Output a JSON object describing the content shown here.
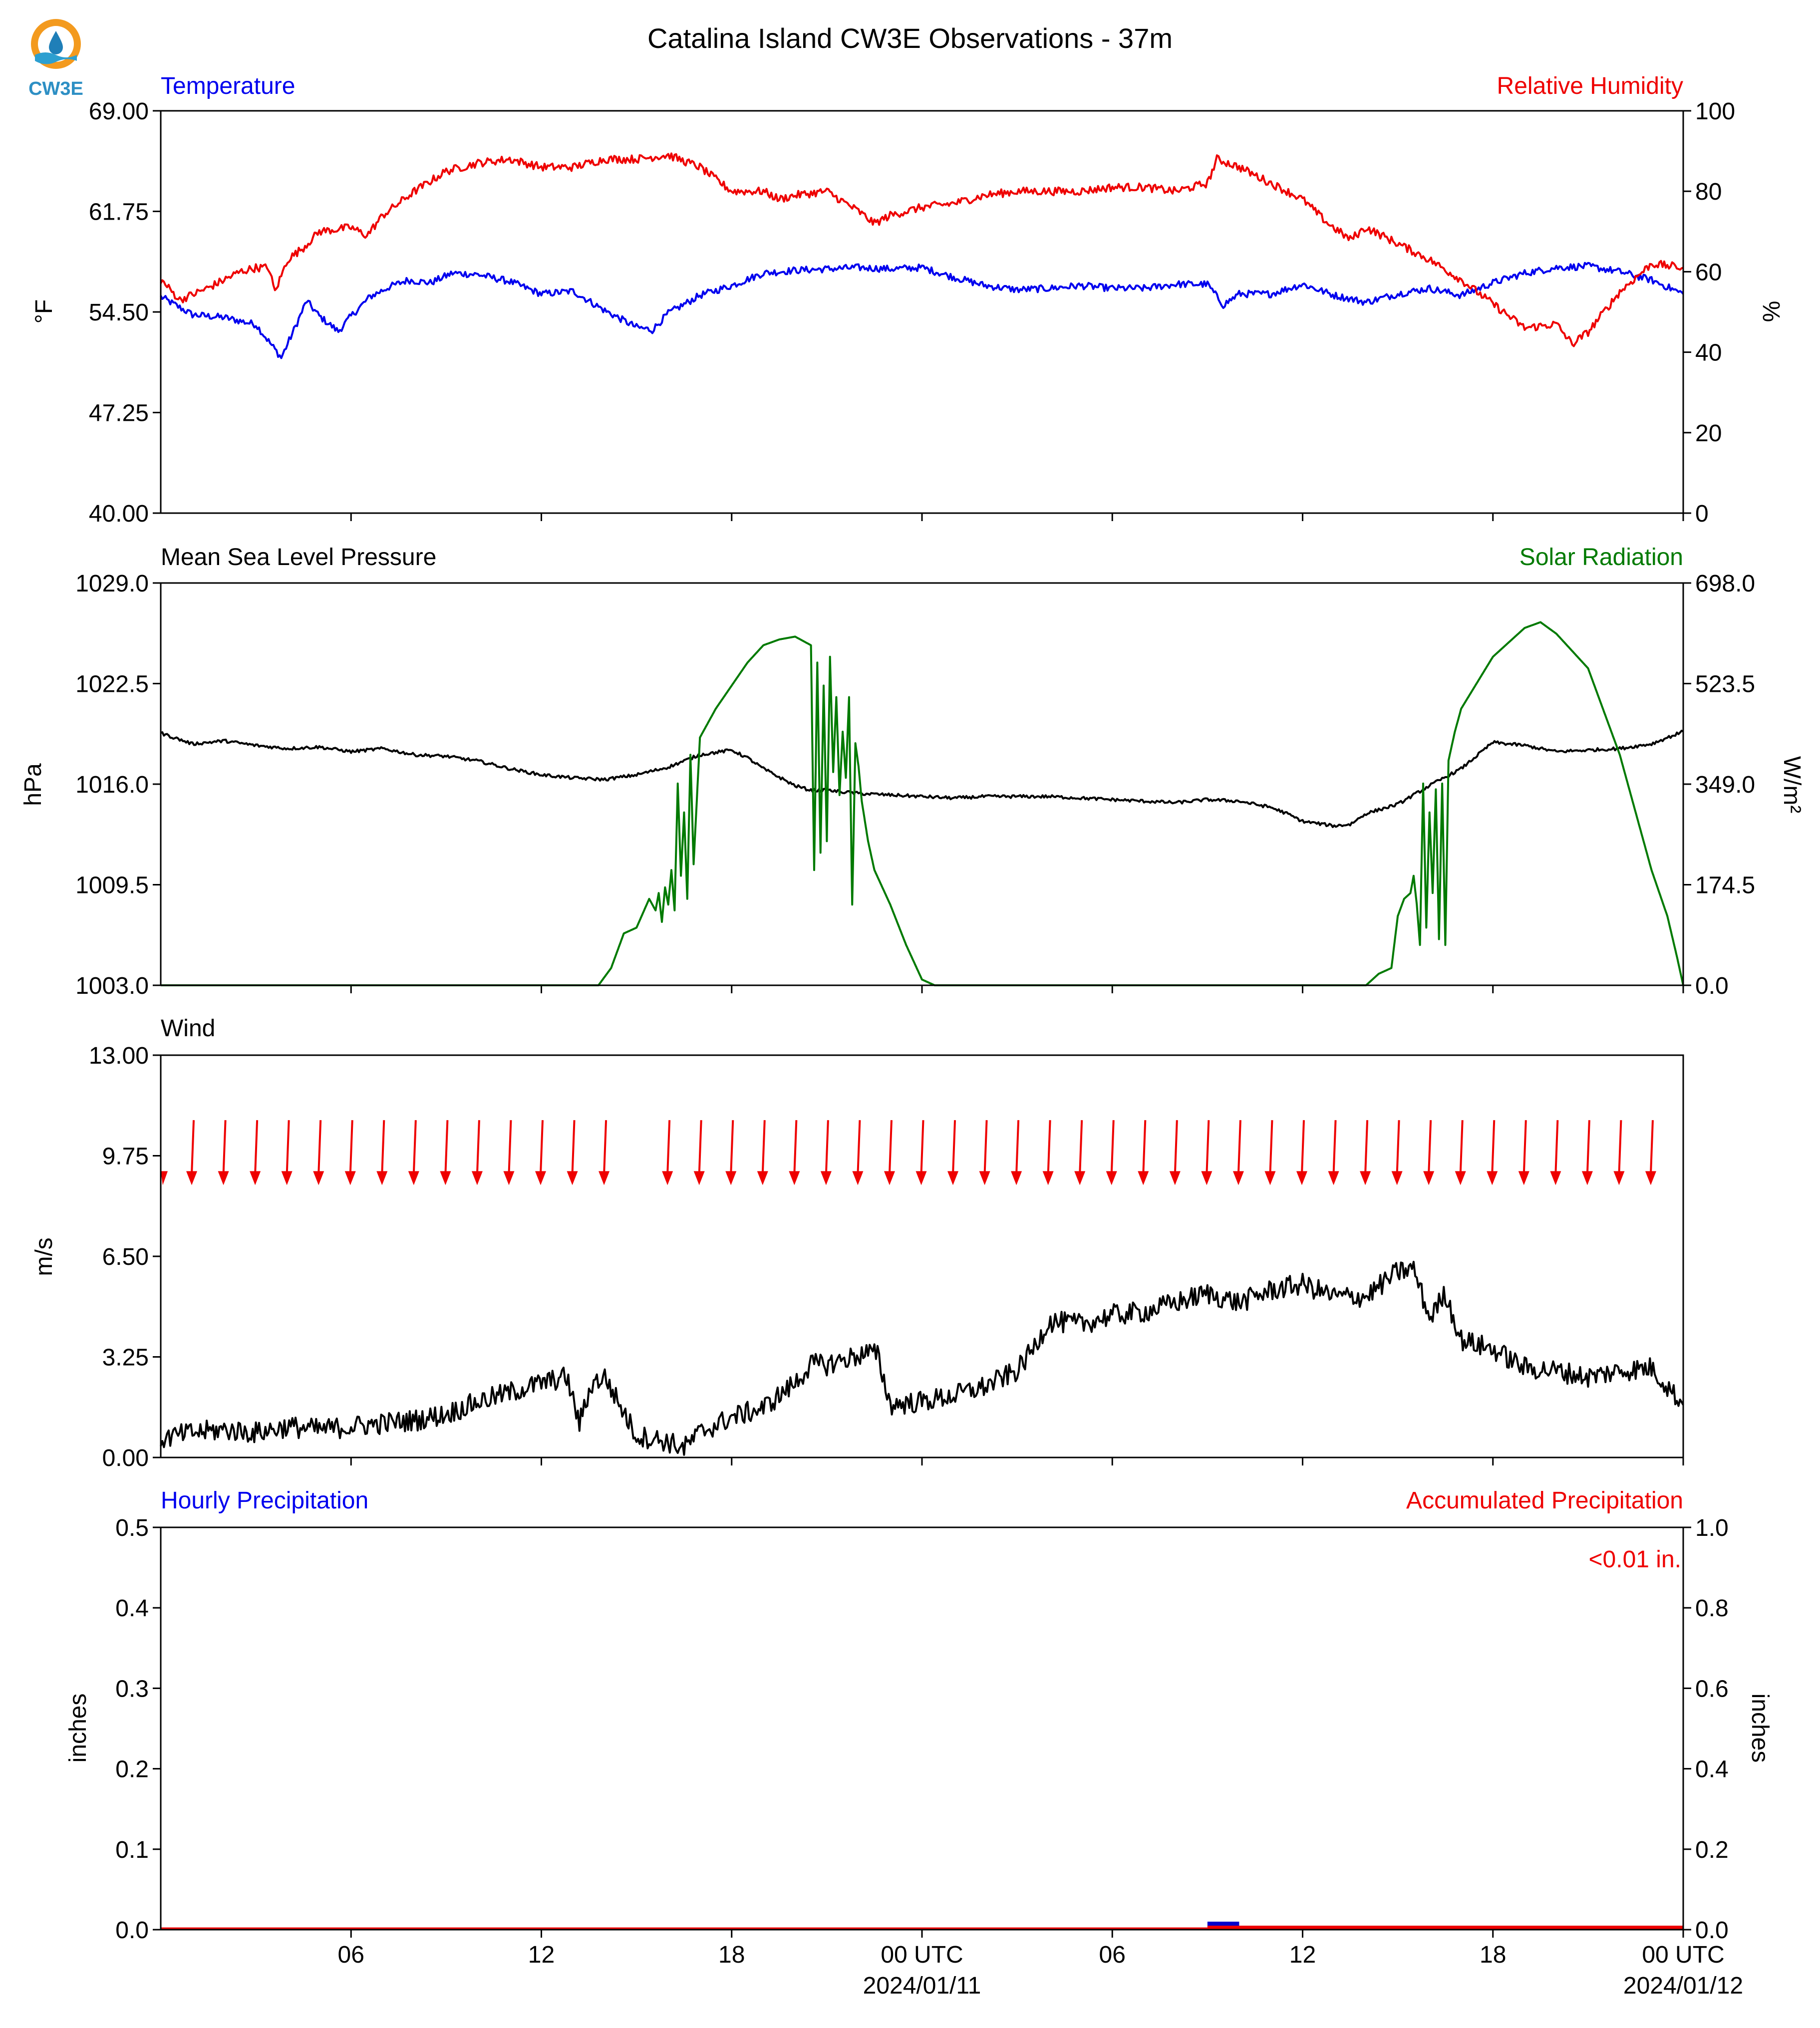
{
  "title": "Catalina Island CW3E Observations - 37m",
  "logo": {
    "text": "CW3E",
    "colors": {
      "ring": "#f39a1e",
      "drop": "#1f7fb8",
      "wave": "#2d9fd0"
    }
  },
  "x_axis": {
    "ticks": [
      "06",
      "12",
      "18",
      "00 UTC",
      "06",
      "12",
      "18",
      "00 UTC"
    ],
    "dates": [
      "2024/01/11",
      "2024/01/12"
    ],
    "range_hours": [
      0,
      48
    ]
  },
  "colors": {
    "blue": "#0000ee",
    "red": "#ee0000",
    "green": "#007a00",
    "black": "#000000"
  },
  "chart_data": [
    {
      "type": "line",
      "left_label": "Temperature",
      "right_label": "Relative Humidity",
      "ylabel": "°F",
      "ylabel2": "%",
      "ylim": [
        40.0,
        69.0
      ],
      "ylim2": [
        0,
        100
      ],
      "yticks": [
        "40.00",
        "47.25",
        "54.50",
        "61.75",
        "69.00"
      ],
      "yticks2": [
        "0",
        "20",
        "40",
        "60",
        "80",
        "100"
      ],
      "series": [
        {
          "name": "Temperature",
          "axis": "left",
          "color": "#0000ee",
          "noise": 0.25,
          "x": [
            0,
            1,
            2,
            3,
            3.5,
            3.8,
            4.2,
            4.6,
            5,
            5.6,
            6,
            6.6,
            7.2,
            7.8,
            8.5,
            9.2,
            10,
            11,
            12,
            13,
            14,
            15,
            15.5,
            16,
            17,
            18,
            19,
            20,
            21,
            22,
            23,
            24,
            25,
            26,
            27,
            28,
            29,
            30,
            31,
            32,
            33,
            33.5,
            34,
            35,
            36,
            37,
            38,
            39,
            40,
            41,
            42,
            43,
            44,
            45,
            46,
            47,
            48
          ],
          "y": [
            55.6,
            54.3,
            54.1,
            53.6,
            52.1,
            51.2,
            53.2,
            55.3,
            54.2,
            53.1,
            54.2,
            55.6,
            56.3,
            56.8,
            56.6,
            57.3,
            57.2,
            56.7,
            55.8,
            56.0,
            54.6,
            53.4,
            53.2,
            54.4,
            55.7,
            56.4,
            57.3,
            57.5,
            57.6,
            57.7,
            57.6,
            57.7,
            57.0,
            56.4,
            56.1,
            56.2,
            56.4,
            56.2,
            56.2,
            56.5,
            56.5,
            55.0,
            55.8,
            55.8,
            56.5,
            55.7,
            55.2,
            55.8,
            56.2,
            55.7,
            56.6,
            57.3,
            57.7,
            57.8,
            57.4,
            56.8,
            55.8
          ]
        },
        {
          "name": "Relative Humidity",
          "axis": "right",
          "color": "#ee0000",
          "noise": 1.0,
          "x": [
            0,
            0.6,
            1.5,
            2.5,
            3,
            3.4,
            3.6,
            4,
            4.5,
            5,
            6,
            6.5,
            7,
            8,
            9,
            10,
            11,
            12,
            13,
            14,
            15,
            16,
            17,
            18,
            19,
            19.5,
            20,
            21,
            22,
            22.5,
            23,
            24,
            25,
            26,
            27,
            28,
            29,
            30,
            31,
            32,
            33,
            33.3,
            34,
            35,
            36,
            36.8,
            37.5,
            38,
            39,
            40,
            41,
            42,
            43,
            44,
            44.5,
            45,
            46,
            47,
            48
          ],
          "y": [
            58,
            53,
            56,
            60,
            61,
            61,
            55,
            63,
            66,
            70,
            71,
            69,
            74,
            80,
            85,
            87,
            88,
            86,
            86,
            88,
            88,
            89,
            86,
            80,
            80,
            78,
            79,
            80,
            75,
            72,
            74,
            76,
            77,
            79,
            80,
            80,
            80,
            81,
            81,
            80,
            82,
            88,
            86,
            82,
            78,
            72,
            68,
            71,
            67,
            63,
            58,
            52,
            46,
            47,
            42,
            45,
            55,
            62,
            61
          ]
        }
      ]
    },
    {
      "type": "line",
      "left_label": "Mean Sea Level Pressure",
      "right_label": "Solar Radiation",
      "ylabel": "hPa",
      "ylabel2": "W/m²",
      "ylim": [
        1003.0,
        1029.0
      ],
      "ylim2": [
        0.0,
        698.0
      ],
      "yticks": [
        "1003.0",
        "1009.5",
        "1016.0",
        "1022.5",
        "1029.0"
      ],
      "yticks2": [
        "0.0",
        "174.5",
        "349.0",
        "523.5",
        "698.0"
      ],
      "series": [
        {
          "name": "Mean Sea Level Pressure",
          "axis": "left",
          "color": "#000000",
          "noise": 0.1,
          "x": [
            0,
            1,
            2,
            3,
            4,
            5,
            6,
            7,
            8,
            9,
            10,
            11,
            12,
            13,
            14,
            15,
            16,
            17,
            18,
            18.5,
            19,
            20,
            20.5,
            21,
            22,
            23,
            24,
            25,
            26,
            27,
            28,
            29,
            30,
            31,
            32,
            33,
            34,
            35,
            35.5,
            36,
            37,
            37.5,
            38,
            39,
            40,
            41,
            42,
            43,
            44,
            45,
            46,
            47,
            48
          ],
          "y": [
            1019.3,
            1018.6,
            1018.8,
            1018.5,
            1018.3,
            1018.4,
            1018.1,
            1018.3,
            1017.9,
            1017.8,
            1017.5,
            1017.0,
            1016.6,
            1016.4,
            1016.3,
            1016.6,
            1017.1,
            1017.9,
            1018.2,
            1017.7,
            1017.0,
            1015.9,
            1015.6,
            1015.6,
            1015.4,
            1015.3,
            1015.2,
            1015.1,
            1015.2,
            1015.2,
            1015.2,
            1015.1,
            1015.0,
            1014.9,
            1014.8,
            1015.0,
            1014.9,
            1014.5,
            1014.1,
            1013.6,
            1013.3,
            1013.4,
            1014.1,
            1014.7,
            1015.9,
            1017.0,
            1018.7,
            1018.5,
            1018.1,
            1018.2,
            1018.3,
            1018.6,
            1019.4
          ]
        },
        {
          "name": "Solar Radiation",
          "axis": "right",
          "color": "#007a00",
          "noise": 0,
          "x": [
            0,
            13.8,
            14.2,
            14.6,
            15,
            15.4,
            15.6,
            15.7,
            15.8,
            15.9,
            16.0,
            16.1,
            16.2,
            16.3,
            16.4,
            16.5,
            16.6,
            16.7,
            16.8,
            17.0,
            17.5,
            18,
            18.5,
            19,
            19.5,
            20,
            20.5,
            20.6,
            20.7,
            20.8,
            20.9,
            21.0,
            21.1,
            21.2,
            21.3,
            21.4,
            21.5,
            21.6,
            21.7,
            21.8,
            21.9,
            22.0,
            22.1,
            22.3,
            22.5,
            23,
            23.5,
            24,
            24.4,
            38,
            38.4,
            38.8,
            39.0,
            39.2,
            39.4,
            39.5,
            39.6,
            39.7,
            39.8,
            39.9,
            40.0,
            40.1,
            40.2,
            40.3,
            40.4,
            40.5,
            40.6,
            40.8,
            41,
            42,
            43,
            43.5,
            44,
            45,
            46,
            46.5,
            47,
            47.5,
            47.8,
            48
          ],
          "y": [
            0,
            0,
            30,
            90,
            100,
            150,
            130,
            160,
            110,
            170,
            140,
            200,
            130,
            350,
            190,
            300,
            150,
            400,
            210,
            430,
            480,
            520,
            560,
            590,
            600,
            605,
            590,
            200,
            560,
            230,
            520,
            250,
            570,
            370,
            500,
            330,
            440,
            360,
            500,
            140,
            420,
            380,
            320,
            250,
            200,
            140,
            70,
            10,
            0,
            0,
            20,
            30,
            120,
            150,
            160,
            190,
            140,
            70,
            350,
            100,
            300,
            160,
            340,
            80,
            350,
            70,
            390,
            440,
            480,
            570,
            620,
            630,
            610,
            550,
            400,
            300,
            200,
            120,
            50,
            0
          ]
        }
      ]
    },
    {
      "type": "line",
      "left_label": "Wind",
      "ylabel": "m/s",
      "ylim": [
        0.0,
        13.0
      ],
      "yticks": [
        "0.00",
        "3.25",
        "6.50",
        "9.75",
        "13.00"
      ],
      "series": [
        {
          "name": "Wind",
          "axis": "left",
          "color": "#000000",
          "noise": 0.35,
          "x": [
            0,
            1,
            2,
            3,
            4,
            5,
            6,
            7,
            8,
            9,
            10,
            11,
            12,
            12.8,
            13.2,
            13.6,
            14,
            15,
            15.6,
            16,
            16.5,
            17,
            18,
            19,
            19.5,
            20,
            20.5,
            21,
            22,
            22.3,
            22.6,
            23,
            24,
            25,
            26,
            27,
            27.5,
            28,
            29,
            30,
            31,
            32,
            33,
            34,
            35,
            36,
            37,
            38,
            39,
            39.5,
            40,
            40.5,
            41,
            42,
            43,
            44,
            45,
            46,
            47,
            48
          ],
          "y": [
            0.6,
            0.8,
            0.9,
            0.8,
            1.0,
            0.9,
            1.0,
            1.1,
            1.2,
            1.4,
            1.8,
            2.1,
            2.4,
            2.6,
            1.1,
            2.4,
            2.6,
            0.7,
            0.6,
            0.5,
            0.3,
            0.8,
            1.3,
            1.6,
            2.0,
            2.4,
            3.0,
            3.0,
            3.3,
            3.4,
            3.3,
            1.7,
            1.8,
            2.0,
            2.3,
            2.8,
            3.5,
            4.4,
            4.3,
            4.6,
            4.7,
            5.0,
            5.3,
            5.0,
            5.4,
            5.6,
            5.2,
            5.2,
            6.0,
            6.1,
            4.5,
            5.3,
            3.8,
            3.5,
            2.9,
            2.8,
            2.6,
            2.8,
            2.9,
            1.7
          ]
        }
      ],
      "wind_arrows": {
        "color": "#ee0000",
        "hours": [
          1,
          2,
          3,
          4,
          5,
          6,
          7,
          8,
          9,
          10,
          11,
          12,
          13,
          14,
          16,
          17,
          18,
          19,
          20,
          21,
          22,
          23,
          24,
          25,
          26,
          27,
          28,
          29,
          30,
          31,
          32,
          33,
          34,
          35,
          36,
          37,
          38,
          39,
          40,
          41,
          42,
          43,
          44,
          45,
          46,
          47
        ]
      }
    },
    {
      "type": "bar",
      "left_label": "Hourly Precipitation",
      "right_label": "Accumulated Precipitation",
      "ylabel": "inches",
      "ylabel2": "inches",
      "ylim": [
        0.0,
        0.5
      ],
      "ylim2": [
        0.0,
        1.0
      ],
      "yticks": [
        "0.0",
        "0.1",
        "0.2",
        "0.3",
        "0.4",
        "0.5"
      ],
      "yticks2": [
        "0.0",
        "0.2",
        "0.4",
        "0.6",
        "0.8",
        "1.0"
      ],
      "annotation": "<0.01 in.",
      "hourly": [
        {
          "hour": 33,
          "value": 0.005
        }
      ],
      "accumulated": {
        "start_hour": 33,
        "value": 0.005
      }
    }
  ]
}
